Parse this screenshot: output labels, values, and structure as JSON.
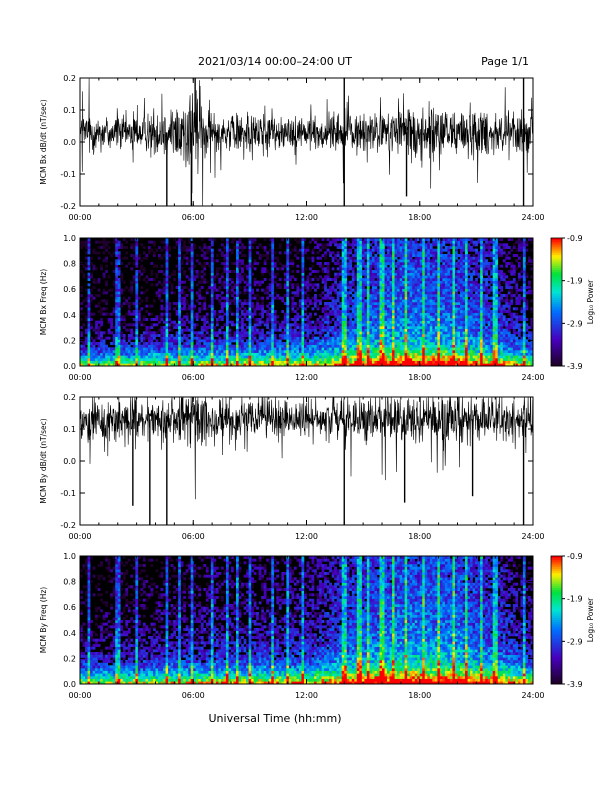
{
  "header": {
    "title": "2021/03/14  00:00–24:00 UT",
    "page": "Page 1/1"
  },
  "footer": {
    "xlabel": "Universal Time (hh:mm)"
  },
  "colors": {
    "trace": "#000000",
    "background": "#000000"
  },
  "chart_data": [
    {
      "type": "line",
      "ylabel": "MCM Bx dB/dt (nT/sec)",
      "xlim": [
        0,
        24
      ],
      "ylim": [
        -0.2,
        0.2
      ],
      "x_ticks": [
        "00:00",
        "06:00",
        "12:00",
        "18:00",
        "24:00"
      ],
      "y_ticks": [
        "-0.2",
        "-0.1",
        "0.0",
        "0.1",
        "0.2"
      ],
      "baseline": 0.03,
      "noise_amplitude": [
        [
          0,
          0.06
        ],
        [
          3.5,
          0.05
        ],
        [
          5.5,
          0.1
        ],
        [
          6.2,
          0.13
        ],
        [
          7,
          0.06
        ],
        [
          12,
          0.05
        ],
        [
          16,
          0.06
        ],
        [
          18,
          0.08
        ],
        [
          21,
          0.07
        ],
        [
          24,
          0.06
        ]
      ],
      "spikes": [
        {
          "x": 4.6,
          "y": -0.2
        },
        {
          "x": 5.9,
          "y": -0.2
        },
        {
          "x": 14.0,
          "y": -0.2
        },
        {
          "x": 17.3,
          "y": -0.17
        },
        {
          "x": 23.5,
          "y": -0.2
        },
        {
          "x": 6.1,
          "y": 0.2
        },
        {
          "x": 14.0,
          "y": 0.2
        },
        {
          "x": 23.5,
          "y": 0.2
        }
      ]
    },
    {
      "type": "heatmap",
      "ylabel": "MCM Bx Freq (Hz)",
      "xlim": [
        0,
        24
      ],
      "ylim": [
        0,
        1
      ],
      "x_ticks": [
        "00:00",
        "06:00",
        "12:00",
        "18:00",
        "24:00"
      ],
      "y_ticks": [
        "0.0",
        "0.2",
        "0.4",
        "0.6",
        "0.8",
        "1.0"
      ],
      "colorbar": {
        "label": "Log₁₀ Power",
        "ticks": [
          "-0.9",
          "-1.9",
          "-2.9",
          "-3.9"
        ],
        "min": -3.9,
        "max": -0.9
      },
      "activity": [
        [
          0,
          0.1
        ],
        [
          6,
          0.2
        ],
        [
          12,
          0.25
        ],
        [
          14.5,
          0.45
        ],
        [
          17,
          0.6
        ],
        [
          20,
          0.55
        ],
        [
          22,
          0.4
        ],
        [
          24,
          0.2
        ]
      ],
      "bright_columns": [
        0.5,
        2.0,
        3.0,
        4.6,
        5.3,
        5.9,
        7.0,
        7.8,
        8.3,
        9.0,
        10.2,
        11.0,
        11.8,
        14.0,
        14.8,
        15.3,
        16.0,
        16.6,
        17.3,
        18.2,
        19.0,
        19.8,
        20.5,
        21.3,
        22.0,
        23.5
      ]
    },
    {
      "type": "line",
      "ylabel": "MCM By dB/dt (nT/sec)",
      "xlim": [
        0,
        24
      ],
      "ylim": [
        -0.2,
        0.2
      ],
      "x_ticks": [
        "00:00",
        "06:00",
        "12:00",
        "18:00",
        "24:00"
      ],
      "y_ticks": [
        "-0.2",
        "-0.1",
        "0.0",
        "0.1",
        "0.2"
      ],
      "baseline": 0.13,
      "noise_amplitude": [
        [
          0,
          0.06
        ],
        [
          5,
          0.06
        ],
        [
          6,
          0.09
        ],
        [
          7,
          0.06
        ],
        [
          12,
          0.05
        ],
        [
          18,
          0.07
        ],
        [
          24,
          0.06
        ]
      ],
      "spikes": [
        {
          "x": 2.8,
          "y": -0.14
        },
        {
          "x": 3.7,
          "y": -0.2
        },
        {
          "x": 4.6,
          "y": -0.2
        },
        {
          "x": 14.0,
          "y": -0.2
        },
        {
          "x": 17.2,
          "y": -0.13
        },
        {
          "x": 20.8,
          "y": -0.11
        },
        {
          "x": 23.5,
          "y": -0.2
        }
      ]
    },
    {
      "type": "heatmap",
      "ylabel": "MCM By Freq (Hz)",
      "xlim": [
        0,
        24
      ],
      "ylim": [
        0,
        1
      ],
      "x_ticks": [
        "00:00",
        "06:00",
        "12:00",
        "18:00",
        "24:00"
      ],
      "y_ticks": [
        "0.0",
        "0.2",
        "0.4",
        "0.6",
        "0.8",
        "1.0"
      ],
      "colorbar": {
        "label": "Log₁₀ Power",
        "ticks": [
          "-0.9",
          "-1.9",
          "-2.9",
          "-3.9"
        ],
        "min": -3.9,
        "max": -0.9
      },
      "activity": [
        [
          0,
          0.15
        ],
        [
          6,
          0.25
        ],
        [
          12,
          0.3
        ],
        [
          14.5,
          0.5
        ],
        [
          17,
          0.62
        ],
        [
          20,
          0.6
        ],
        [
          22,
          0.45
        ],
        [
          24,
          0.25
        ]
      ],
      "bright_columns": [
        0.5,
        2.0,
        3.0,
        4.6,
        5.3,
        5.9,
        7.0,
        7.8,
        8.3,
        9.0,
        10.2,
        11.0,
        11.8,
        14.0,
        14.8,
        15.3,
        16.0,
        16.6,
        17.3,
        18.2,
        19.0,
        19.8,
        20.5,
        21.3,
        22.0,
        23.5
      ]
    }
  ]
}
